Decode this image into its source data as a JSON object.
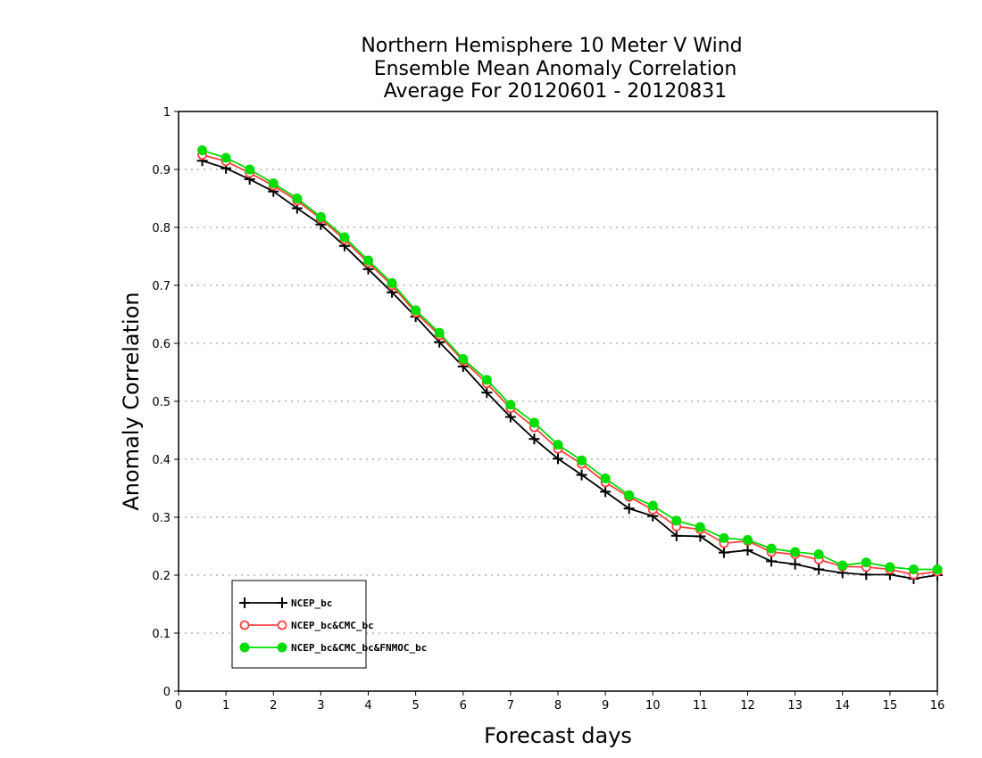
{
  "chart_data": {
    "type": "line",
    "title": [
      "Northern Hemisphere 10 Meter V Wind",
      "Ensemble Mean Anomaly Correlation",
      "Average For 20120601 - 20120831"
    ],
    "xlabel": "Forecast days",
    "ylabel": "Anomaly Correlation",
    "xlim": [
      0,
      16
    ],
    "ylim": [
      0,
      1
    ],
    "xticks": [
      "0",
      "1",
      "2",
      "3",
      "4",
      "5",
      "6",
      "7",
      "8",
      "9",
      "10",
      "11",
      "12",
      "13",
      "14",
      "15",
      "16"
    ],
    "yticks": [
      "0",
      "0.1",
      "0.2",
      "0.3",
      "0.4",
      "0.5",
      "0.6",
      "0.7",
      "0.8",
      "0.9",
      "1"
    ],
    "grid": "dotted horizontal",
    "legend_position": "bottom-left",
    "x": [
      0.5,
      1,
      1.5,
      2,
      2.5,
      3,
      3.5,
      4,
      4.5,
      5,
      5.5,
      6,
      6.5,
      7,
      7.5,
      8,
      8.5,
      9,
      9.5,
      10,
      10.5,
      11,
      11.5,
      12,
      12.5,
      13,
      13.5,
      14,
      14.5,
      15,
      15.5,
      16
    ],
    "series": [
      {
        "name": "NCEP_bc",
        "color": "#000000",
        "marker": "plus",
        "values": [
          0.915,
          0.902,
          0.883,
          0.862,
          0.833,
          0.805,
          0.768,
          0.728,
          0.688,
          0.646,
          0.602,
          0.56,
          0.515,
          0.473,
          0.435,
          0.401,
          0.373,
          0.344,
          0.315,
          0.302,
          0.268,
          0.267,
          0.239,
          0.243,
          0.224,
          0.219,
          0.21,
          0.204,
          0.201,
          0.201,
          0.194,
          0.2
        ]
      },
      {
        "name": "NCEP_bc&CMC_bc",
        "color": "#ff4040",
        "marker": "open-circle",
        "values": [
          0.925,
          0.914,
          0.894,
          0.872,
          0.846,
          0.815,
          0.779,
          0.739,
          0.7,
          0.653,
          0.614,
          0.57,
          0.531,
          0.488,
          0.455,
          0.418,
          0.392,
          0.36,
          0.335,
          0.313,
          0.284,
          0.279,
          0.255,
          0.259,
          0.24,
          0.236,
          0.227,
          0.215,
          0.214,
          0.21,
          0.201,
          0.206
        ]
      },
      {
        "name": "NCEP_bc&CMC_bc&FNMOC_bc",
        "color": "#00dd00",
        "marker": "filled-circle",
        "values": [
          0.933,
          0.92,
          0.9,
          0.876,
          0.85,
          0.818,
          0.783,
          0.743,
          0.704,
          0.657,
          0.618,
          0.573,
          0.537,
          0.494,
          0.463,
          0.425,
          0.398,
          0.367,
          0.338,
          0.32,
          0.294,
          0.283,
          0.264,
          0.261,
          0.246,
          0.24,
          0.236,
          0.217,
          0.222,
          0.214,
          0.21,
          0.21
        ]
      }
    ]
  }
}
